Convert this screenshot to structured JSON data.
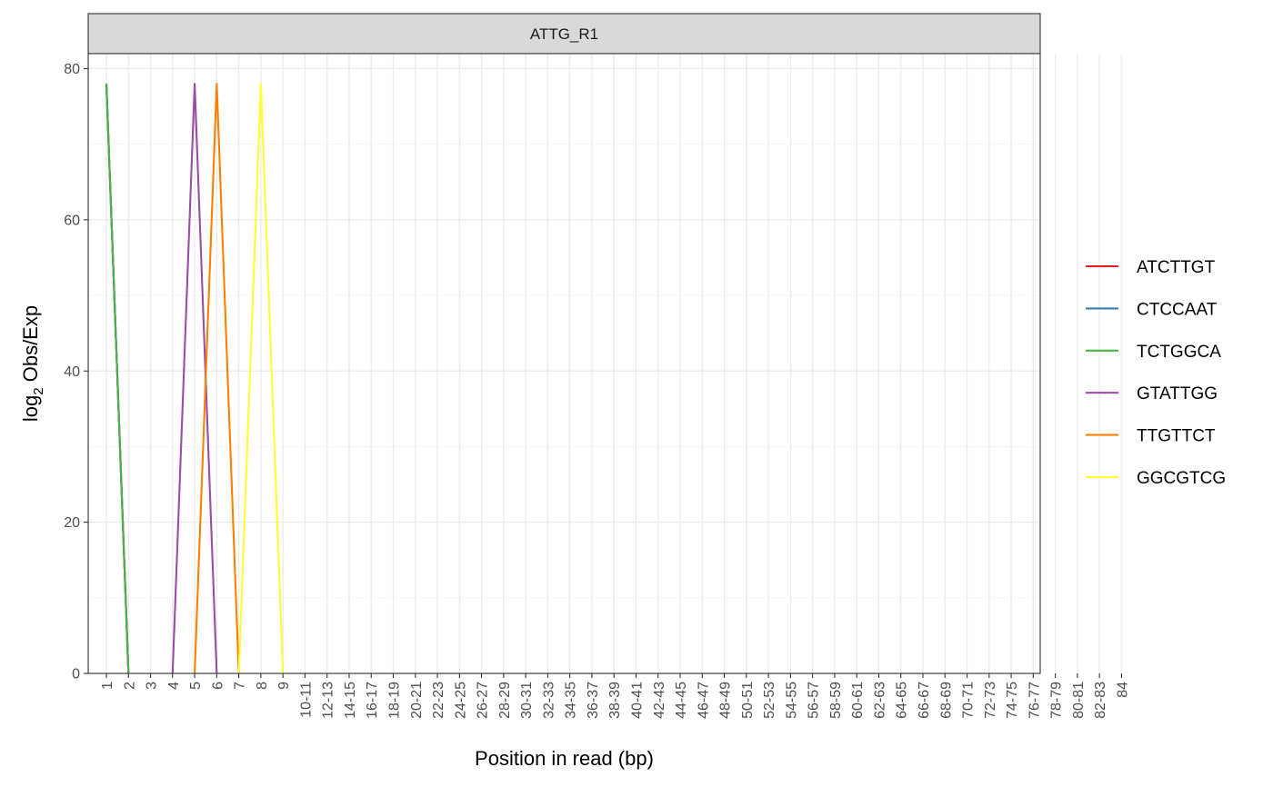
{
  "chart_data": {
    "type": "line",
    "facet_label": "ATTG_R1",
    "xlabel": "Position in read (bp)",
    "ylabel_main": "log",
    "ylabel_sub": "2",
    "ylabel_rest": " Obs/Exp",
    "ylim": [
      0,
      80
    ],
    "yticks": [
      0,
      20,
      40,
      60,
      80
    ],
    "grid": true,
    "legend_position": "right",
    "categories": [
      "1",
      "2",
      "3",
      "4",
      "5",
      "6",
      "7",
      "8",
      "9",
      "10-11",
      "12-13",
      "14-15",
      "16-17",
      "18-19",
      "20-21",
      "22-23",
      "24-25",
      "26-27",
      "28-29",
      "30-31",
      "32-33",
      "34-35",
      "36-37",
      "38-39",
      "40-41",
      "42-43",
      "44-45",
      "46-47",
      "48-49",
      "50-51",
      "52-53",
      "54-55",
      "56-57",
      "58-59",
      "60-61",
      "62-63",
      "64-65",
      "66-67",
      "68-69",
      "70-71",
      "72-73",
      "74-75",
      "76-77",
      "78-79",
      "80-81",
      "82-83",
      "84"
    ],
    "series": [
      {
        "name": "ATCTTGT",
        "color": "#e41a1c",
        "points": [
          [
            "1",
            78
          ],
          [
            "2",
            0
          ]
        ]
      },
      {
        "name": "CTCCAAT",
        "color": "#377eb8",
        "points": [
          [
            "1",
            78
          ],
          [
            "2",
            0
          ]
        ]
      },
      {
        "name": "TCTGGCA",
        "color": "#4daf4a",
        "points": [
          [
            "1",
            78
          ],
          [
            "2",
            0
          ]
        ]
      },
      {
        "name": "GTATTGG",
        "color": "#984ea3",
        "points": [
          [
            "4",
            0
          ],
          [
            "5",
            78
          ],
          [
            "6",
            0
          ]
        ]
      },
      {
        "name": "TTGTTCT",
        "color": "#ff7f00",
        "points": [
          [
            "5",
            0
          ],
          [
            "6",
            78
          ],
          [
            "7",
            0
          ]
        ]
      },
      {
        "name": "GGCGTCG",
        "color": "#ffff33",
        "points": [
          [
            "7",
            0
          ],
          [
            "8",
            78
          ],
          [
            "9",
            0
          ]
        ]
      }
    ]
  }
}
